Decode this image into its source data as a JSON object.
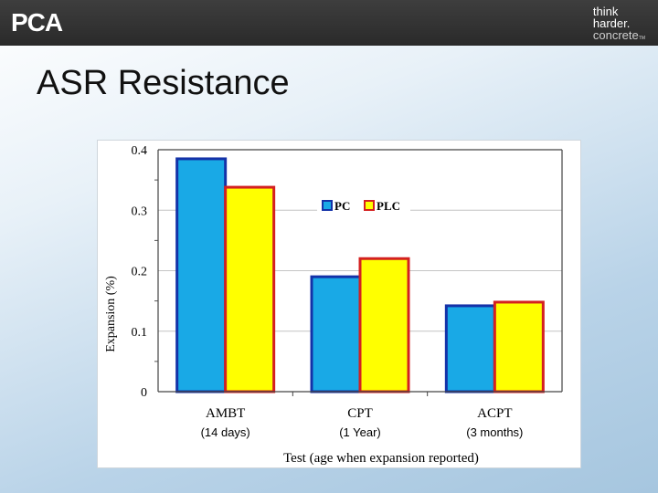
{
  "brand": {
    "logo_text": "PCA",
    "tagline": [
      "think",
      "harder.",
      "concrete"
    ],
    "tagline_mark": "TM"
  },
  "slide": {
    "title": "ASR Resistance"
  },
  "colors": {
    "pc": "#19a9e6",
    "pc_border": "#1432a8",
    "plc": "#ffff00",
    "plc_border": "#d42020"
  },
  "chart_data": {
    "type": "bar",
    "categories": [
      "AMBT",
      "CPT",
      "ACPT"
    ],
    "category_notes": [
      "(14 days)",
      "(1 Year)",
      "(3 months)"
    ],
    "series": [
      {
        "name": "PC",
        "values": [
          0.385,
          0.19,
          0.142
        ]
      },
      {
        "name": "PLC",
        "values": [
          0.338,
          0.22,
          0.148
        ]
      }
    ],
    "xlabel": "Test (age when expansion reported)",
    "ylabel": "Expansion (%)",
    "ylim": [
      0,
      0.4
    ],
    "yticks": [
      {
        "v": 0,
        "label": "0"
      },
      {
        "v": 0.1,
        "label": "0.1"
      },
      {
        "v": 0.2,
        "label": "0.2"
      },
      {
        "v": 0.3,
        "label": "0.3"
      },
      {
        "v": 0.4,
        "label": "0.4"
      }
    ],
    "grid": true,
    "legend_position": "top-right"
  }
}
